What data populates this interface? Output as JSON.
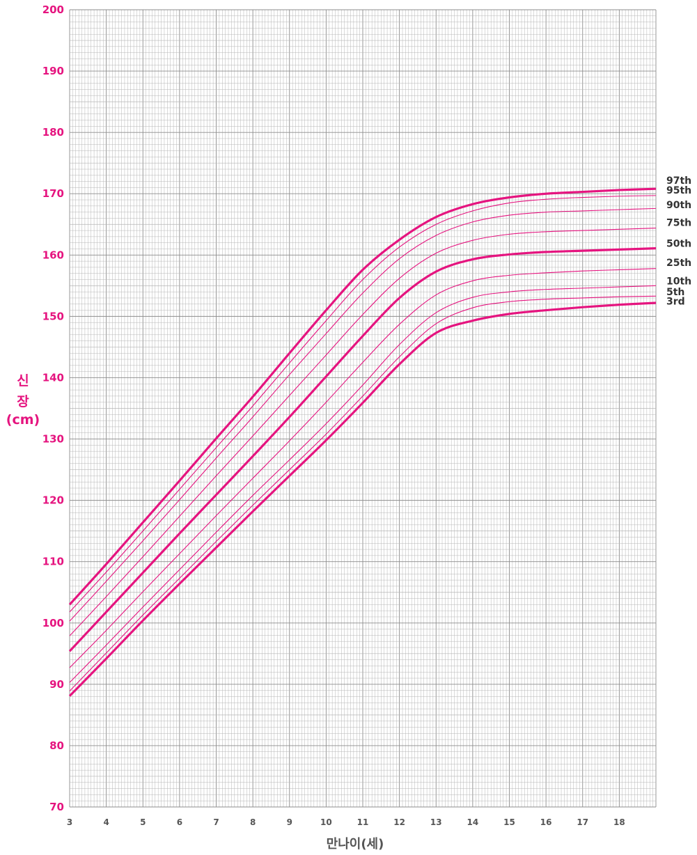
{
  "chart_data": {
    "type": "line",
    "ylabel_lines": [
      "신",
      "장",
      "(cm)"
    ],
    "xlabel": "만나이(세)",
    "xlim": [
      3,
      19
    ],
    "ylim": [
      70,
      200
    ],
    "x_ticks": [
      "3",
      "4",
      "5",
      "6",
      "7",
      "8",
      "9",
      "10",
      "11",
      "12",
      "13",
      "14",
      "15",
      "16",
      "17",
      "18"
    ],
    "y_ticks": [
      "70",
      "80",
      "90",
      "100",
      "110",
      "120",
      "130",
      "140",
      "150",
      "160",
      "170",
      "180",
      "190",
      "200"
    ],
    "grid": true,
    "colors": {
      "curve": "#e5147f",
      "grid": "#b5b5b5",
      "grid_major": "#8c8c8c",
      "label": "#333333"
    },
    "x": [
      3,
      4,
      5,
      6,
      7,
      8,
      9,
      10,
      11,
      12,
      13,
      14,
      15,
      16,
      17,
      18,
      19
    ],
    "series": [
      {
        "name": "97th",
        "bold": true,
        "values": [
          103.0,
          109.6,
          116.4,
          123.2,
          130.1,
          136.9,
          144.0,
          151.0,
          157.6,
          162.5,
          166.2,
          168.3,
          169.4,
          170.0,
          170.3,
          170.6,
          170.8
        ]
      },
      {
        "name": "95th",
        "bold": false,
        "values": [
          101.8,
          108.3,
          115.0,
          121.8,
          128.6,
          135.4,
          142.4,
          149.3,
          156.0,
          161.3,
          165.0,
          167.2,
          168.5,
          169.1,
          169.4,
          169.6,
          169.7
        ]
      },
      {
        "name": "90th",
        "bold": false,
        "values": [
          100.3,
          106.8,
          113.4,
          120.1,
          126.9,
          133.6,
          140.5,
          147.2,
          153.8,
          159.4,
          163.2,
          165.4,
          166.5,
          167.0,
          167.2,
          167.4,
          167.6
        ]
      },
      {
        "name": "75th",
        "bold": false,
        "values": [
          97.9,
          104.3,
          110.8,
          117.4,
          124.0,
          130.5,
          137.1,
          143.7,
          150.3,
          156.2,
          160.3,
          162.4,
          163.4,
          163.8,
          164.0,
          164.2,
          164.4
        ]
      },
      {
        "name": "50th",
        "bold": true,
        "values": [
          95.4,
          101.8,
          108.2,
          114.6,
          120.9,
          127.2,
          133.6,
          140.2,
          146.8,
          153.0,
          157.3,
          159.3,
          160.1,
          160.5,
          160.7,
          160.9,
          161.1
        ]
      },
      {
        "name": "25th",
        "bold": false,
        "values": [
          92.7,
          98.8,
          105.1,
          111.3,
          117.5,
          123.6,
          129.7,
          136.0,
          142.5,
          148.7,
          153.5,
          155.8,
          156.7,
          157.1,
          157.4,
          157.6,
          157.8
        ]
      },
      {
        "name": "10th",
        "bold": false,
        "values": [
          90.3,
          96.4,
          102.6,
          108.7,
          114.8,
          120.8,
          126.6,
          132.5,
          138.8,
          145.4,
          150.6,
          153.1,
          154.0,
          154.4,
          154.6,
          154.8,
          155.0
        ]
      },
      {
        "name": "5th",
        "bold": false,
        "values": [
          88.9,
          95.1,
          101.3,
          107.3,
          113.3,
          119.2,
          125.0,
          130.8,
          137.0,
          143.4,
          148.8,
          151.4,
          152.4,
          152.8,
          153.0,
          153.2,
          153.3
        ]
      },
      {
        "name": "3rd",
        "bold": true,
        "values": [
          88.1,
          94.2,
          100.4,
          106.4,
          112.3,
          118.2,
          124.0,
          129.8,
          135.9,
          142.2,
          147.3,
          149.3,
          150.4,
          151.0,
          151.5,
          151.9,
          152.2
        ]
      }
    ],
    "end_labels": [
      {
        "text": "97th",
        "y": 172.2
      },
      {
        "text": "95th",
        "y": 170.6
      },
      {
        "text": "90th",
        "y": 168.2
      },
      {
        "text": "75th",
        "y": 165.3
      },
      {
        "text": "50th",
        "y": 161.9
      },
      {
        "text": "25th",
        "y": 158.8
      },
      {
        "text": "10th",
        "y": 155.8
      },
      {
        "text": "5th",
        "y": 154.0
      },
      {
        "text": "3rd",
        "y": 152.5
      }
    ]
  }
}
